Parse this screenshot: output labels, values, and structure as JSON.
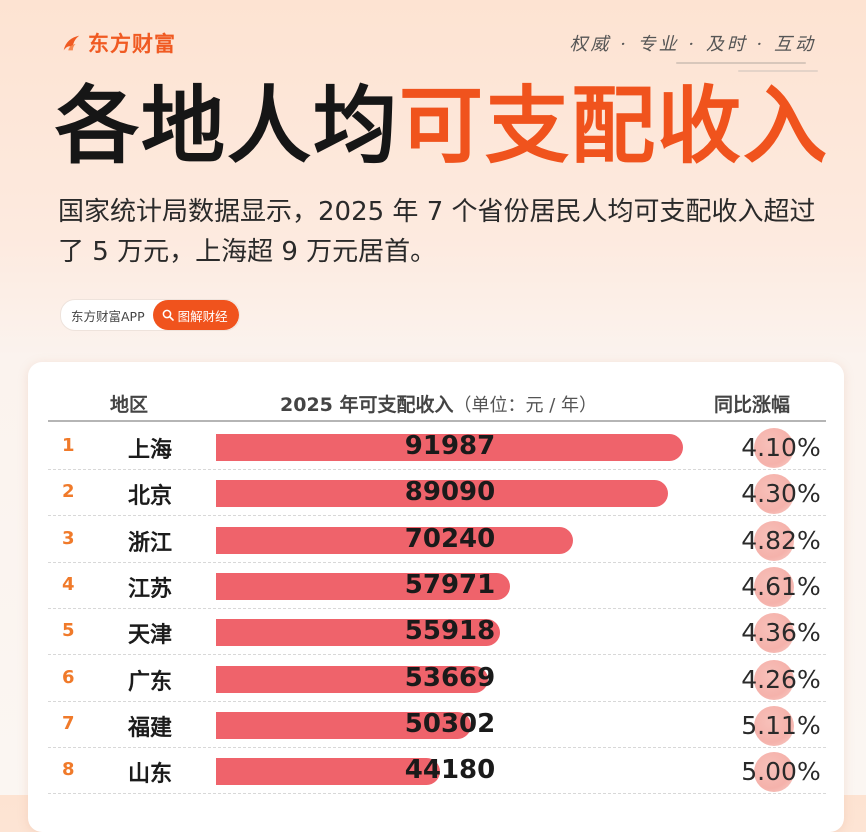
{
  "brand": {
    "name": "东方财富",
    "slogan": "权威 · 专业 · 及时 · 互动"
  },
  "title": {
    "black": "各地人均",
    "orange": "可支配收入"
  },
  "subtitle": "国家统计局数据显示，2025 年 7 个省份居民人均可支配收入超过了 5 万元，上海超 9 万元居首。",
  "pill": {
    "app": "东方财富APP",
    "button": "图解财经",
    "button_icon": "search-icon"
  },
  "colors": {
    "accent": "#f0531d",
    "bar": "#ef636b",
    "rank": "#f07a2a"
  },
  "chart_data": {
    "type": "bar",
    "orientation": "horizontal",
    "title": "2025 年可支配收入",
    "value_unit": "（单位：元 / 年）",
    "columns": [
      "地区",
      "2025 年可支配收入",
      "同比涨幅"
    ],
    "ranks": [
      "1",
      "2",
      "3",
      "4",
      "5",
      "6",
      "7",
      "8"
    ],
    "categories": [
      "上海",
      "北京",
      "浙江",
      "江苏",
      "天津",
      "广东",
      "福建",
      "山东"
    ],
    "values": [
      91987,
      89090,
      70240,
      57971,
      55918,
      53669,
      50302,
      44180
    ],
    "value_labels": [
      "91987",
      "89090",
      "70240",
      "57971",
      "55918",
      "53669",
      "50302",
      "44180"
    ],
    "growth": [
      "4.10%",
      "4.30%",
      "4.82%",
      "4.61%",
      "4.36%",
      "4.26%",
      "5.11%",
      "5.00%"
    ],
    "xlim": [
      0,
      91987
    ]
  }
}
